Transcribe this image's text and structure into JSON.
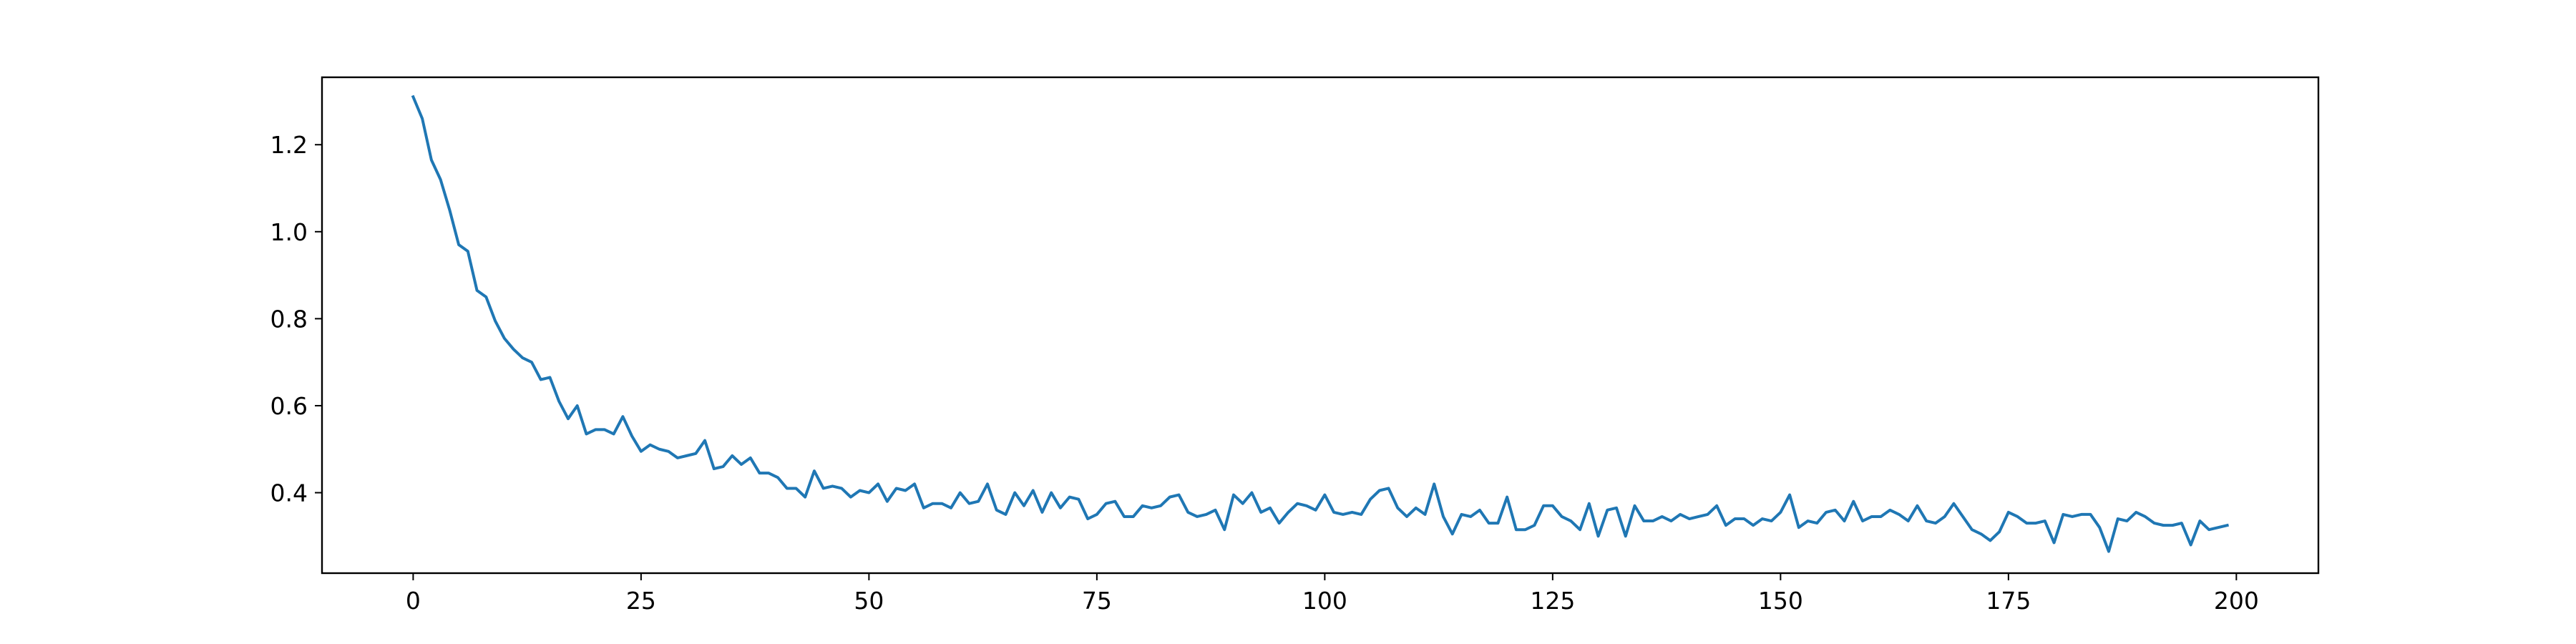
{
  "chart_data": {
    "type": "line",
    "title": "",
    "xlabel": "",
    "ylabel": "",
    "xlim": [
      -10,
      209
    ],
    "ylim": [
      0.215,
      1.355
    ],
    "xticks": [
      0,
      25,
      50,
      75,
      100,
      125,
      150,
      175,
      200
    ],
    "xtick_labels": [
      "0",
      "25",
      "50",
      "75",
      "100",
      "125",
      "150",
      "175",
      "200"
    ],
    "yticks": [
      0.4,
      0.6,
      0.8,
      1.0,
      1.2
    ],
    "ytick_labels": [
      "0.4",
      "0.6",
      "0.8",
      "1.0",
      "1.2"
    ],
    "grid": false,
    "legend": "none",
    "series": [
      {
        "color": "#1f77b4",
        "x": [
          0,
          1,
          2,
          3,
          4,
          5,
          6,
          7,
          8,
          9,
          10,
          11,
          12,
          13,
          14,
          15,
          16,
          17,
          18,
          19,
          20,
          21,
          22,
          23,
          24,
          25,
          26,
          27,
          28,
          29,
          30,
          31,
          32,
          33,
          34,
          35,
          36,
          37,
          38,
          39,
          40,
          41,
          42,
          43,
          44,
          45,
          46,
          47,
          48,
          49,
          50,
          51,
          52,
          53,
          54,
          55,
          56,
          57,
          58,
          59,
          60,
          61,
          62,
          63,
          64,
          65,
          66,
          67,
          68,
          69,
          70,
          71,
          72,
          73,
          74,
          75,
          76,
          77,
          78,
          79,
          80,
          81,
          82,
          83,
          84,
          85,
          86,
          87,
          88,
          89,
          90,
          91,
          92,
          93,
          94,
          95,
          96,
          97,
          98,
          99,
          100,
          101,
          102,
          103,
          104,
          105,
          106,
          107,
          108,
          109,
          110,
          111,
          112,
          113,
          114,
          115,
          116,
          117,
          118,
          119,
          120,
          121,
          122,
          123,
          124,
          125,
          126,
          127,
          128,
          129,
          130,
          131,
          132,
          133,
          134,
          135,
          136,
          137,
          138,
          139,
          140,
          141,
          142,
          143,
          144,
          145,
          146,
          147,
          148,
          149,
          150,
          151,
          152,
          153,
          154,
          155,
          156,
          157,
          158,
          159,
          160,
          161,
          162,
          163,
          164,
          165,
          166,
          167,
          168,
          169,
          170,
          171,
          172,
          173,
          174,
          175,
          176,
          177,
          178,
          179,
          180,
          181,
          182,
          183,
          184,
          185,
          186,
          187,
          188,
          189,
          190,
          191,
          192,
          193,
          194,
          195,
          196,
          197,
          198,
          199
        ],
        "values": [
          1.31,
          1.26,
          1.165,
          1.12,
          1.05,
          0.97,
          0.955,
          0.865,
          0.85,
          0.795,
          0.755,
          0.73,
          0.71,
          0.7,
          0.66,
          0.665,
          0.61,
          0.57,
          0.6,
          0.535,
          0.545,
          0.545,
          0.535,
          0.575,
          0.53,
          0.495,
          0.51,
          0.5,
          0.495,
          0.48,
          0.485,
          0.49,
          0.52,
          0.455,
          0.46,
          0.485,
          0.465,
          0.48,
          0.445,
          0.445,
          0.435,
          0.41,
          0.41,
          0.39,
          0.45,
          0.41,
          0.415,
          0.41,
          0.39,
          0.405,
          0.4,
          0.42,
          0.38,
          0.41,
          0.405,
          0.42,
          0.365,
          0.375,
          0.375,
          0.365,
          0.4,
          0.375,
          0.38,
          0.42,
          0.36,
          0.35,
          0.4,
          0.37,
          0.405,
          0.355,
          0.4,
          0.365,
          0.39,
          0.385,
          0.34,
          0.35,
          0.375,
          0.38,
          0.345,
          0.345,
          0.37,
          0.365,
          0.37,
          0.39,
          0.395,
          0.355,
          0.345,
          0.35,
          0.36,
          0.315,
          0.395,
          0.375,
          0.4,
          0.355,
          0.365,
          0.33,
          0.355,
          0.375,
          0.37,
          0.36,
          0.395,
          0.355,
          0.35,
          0.355,
          0.35,
          0.385,
          0.405,
          0.41,
          0.365,
          0.345,
          0.365,
          0.35,
          0.42,
          0.345,
          0.305,
          0.35,
          0.345,
          0.36,
          0.33,
          0.33,
          0.39,
          0.315,
          0.315,
          0.325,
          0.37,
          0.37,
          0.345,
          0.335,
          0.315,
          0.375,
          0.3,
          0.36,
          0.365,
          0.3,
          0.37,
          0.335,
          0.335,
          0.345,
          0.335,
          0.35,
          0.34,
          0.345,
          0.35,
          0.37,
          0.325,
          0.34,
          0.34,
          0.325,
          0.34,
          0.335,
          0.355,
          0.395,
          0.32,
          0.335,
          0.33,
          0.355,
          0.36,
          0.335,
          0.38,
          0.335,
          0.345,
          0.345,
          0.36,
          0.35,
          0.335,
          0.37,
          0.335,
          0.33,
          0.345,
          0.375,
          0.345,
          0.315,
          0.305,
          0.29,
          0.31,
          0.355,
          0.345,
          0.33,
          0.33,
          0.335,
          0.285,
          0.35,
          0.345,
          0.35,
          0.35,
          0.32,
          0.265,
          0.34,
          0.335,
          0.355,
          0.345,
          0.33,
          0.325,
          0.325,
          0.33,
          0.28,
          0.335,
          0.315,
          0.32,
          0.325
        ]
      }
    ]
  }
}
